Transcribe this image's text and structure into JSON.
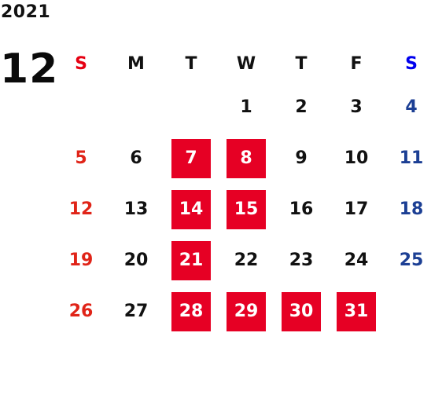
{
  "calendar": {
    "year": "2021",
    "month": "12",
    "weekdays": [
      "S",
      "M",
      "T",
      "W",
      "T",
      "F",
      "S"
    ],
    "weeks": [
      [
        "",
        "",
        "",
        "1",
        "2",
        "3",
        "4"
      ],
      [
        "5",
        "6",
        "7",
        "8",
        "9",
        "10",
        "11"
      ],
      [
        "12",
        "13",
        "14",
        "15",
        "16",
        "17",
        "18"
      ],
      [
        "19",
        "20",
        "21",
        "22",
        "23",
        "24",
        "25"
      ],
      [
        "26",
        "27",
        "28",
        "29",
        "30",
        "31",
        ""
      ]
    ],
    "highlighted_days": [
      "7",
      "8",
      "14",
      "15",
      "21",
      "28",
      "29",
      "30",
      "31"
    ],
    "colors": {
      "sunday": "#e02418",
      "saturday": "#1c3f94",
      "weekday": "#111111",
      "highlight": "#e60024"
    }
  }
}
